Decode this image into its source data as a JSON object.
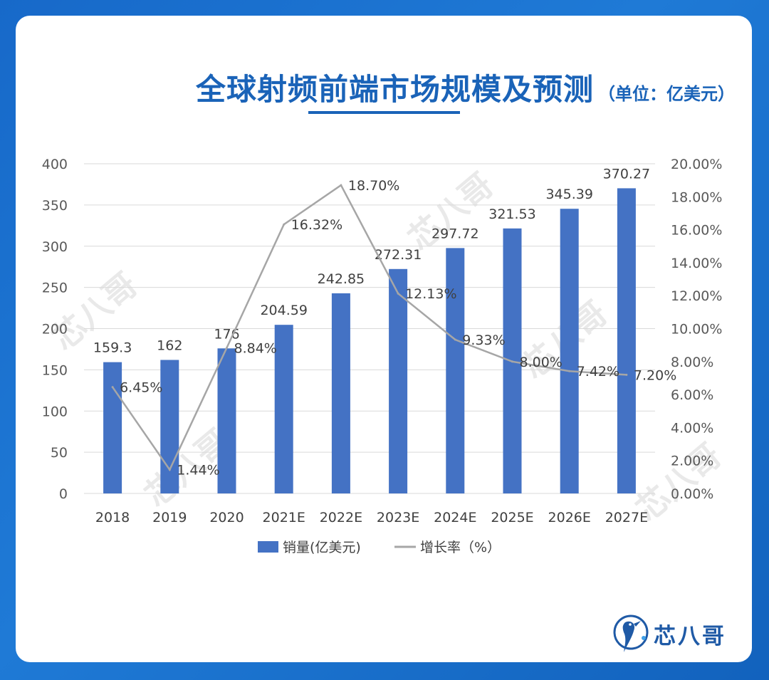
{
  "title": "全球射频前端市场规模及预测",
  "unit_note": "（单位：亿美元）",
  "brand": "芯八哥",
  "colors": {
    "bar": "#4472c4",
    "line": "#a6a6a6",
    "title": "#1a63b8",
    "background": "#1769c9"
  },
  "chart_data": {
    "type": "bar",
    "categories": [
      "2018",
      "2019",
      "2020",
      "2021E",
      "2022E",
      "2023E",
      "2024E",
      "2025E",
      "2026E",
      "2027E"
    ],
    "series": [
      {
        "name": "销量(亿美元)",
        "type": "bar",
        "axis": "left",
        "values": [
          159.3,
          162,
          176,
          204.59,
          242.85,
          272.31,
          297.72,
          321.53,
          345.39,
          370.27
        ],
        "labels": [
          "159.3",
          "162",
          "176",
          "204.59",
          "242.85",
          "272.31",
          "297.72",
          "321.53",
          "345.39",
          "370.27"
        ]
      },
      {
        "name": "增长率（%）",
        "type": "line",
        "axis": "right",
        "values": [
          6.45,
          1.44,
          8.84,
          16.32,
          18.7,
          12.13,
          9.33,
          8.0,
          7.42,
          7.2
        ],
        "labels": [
          "6.45%",
          "1.44%",
          "8.84%",
          "16.32%",
          "18.70%",
          "12.13%",
          "9.33%",
          "8.00%",
          "7.42%",
          "7.20%"
        ]
      }
    ],
    "y_left": {
      "min": 0,
      "max": 400,
      "ticks": [
        "0",
        "50",
        "100",
        "150",
        "200",
        "250",
        "300",
        "350",
        "400"
      ]
    },
    "y_right": {
      "min": 0,
      "max": 20,
      "ticks": [
        "0.00%",
        "2.00%",
        "4.00%",
        "6.00%",
        "8.00%",
        "10.00%",
        "12.00%",
        "14.00%",
        "16.00%",
        "18.00%",
        "20.00%"
      ]
    },
    "grid": true,
    "legend_position": "bottom"
  }
}
